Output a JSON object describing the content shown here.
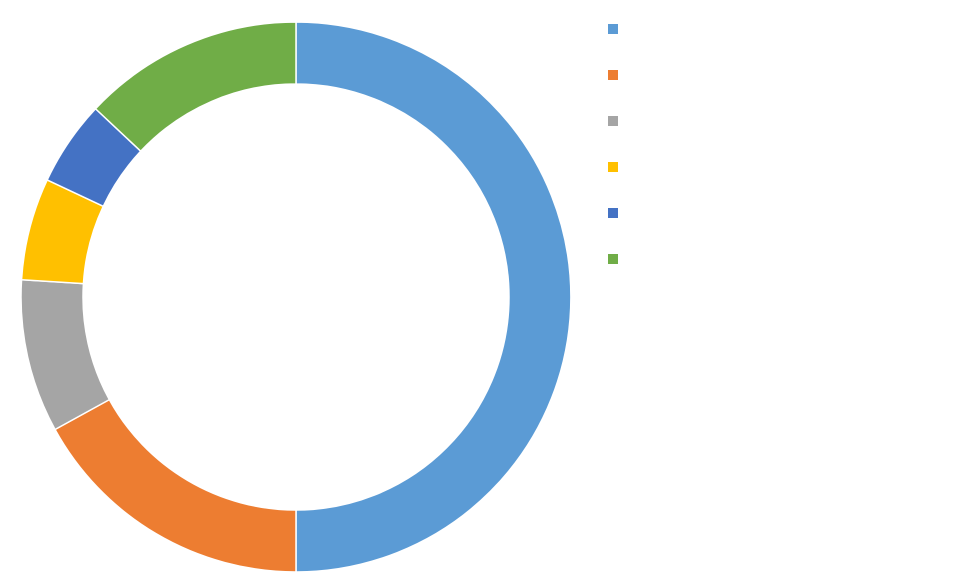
{
  "chart_data": {
    "type": "pie",
    "donut": true,
    "title": "",
    "legend_position": "right",
    "slices": [
      {
        "name": "",
        "value": 50,
        "color": "#5B9BD5"
      },
      {
        "name": "",
        "value": 17,
        "color": "#ED7D31"
      },
      {
        "name": "",
        "value": 9,
        "color": "#A5A5A5"
      },
      {
        "name": "",
        "value": 6,
        "color": "#FFC000"
      },
      {
        "name": "",
        "value": 5,
        "color": "#4472C4"
      },
      {
        "name": "",
        "value": 13,
        "color": "#70AD47"
      }
    ]
  }
}
